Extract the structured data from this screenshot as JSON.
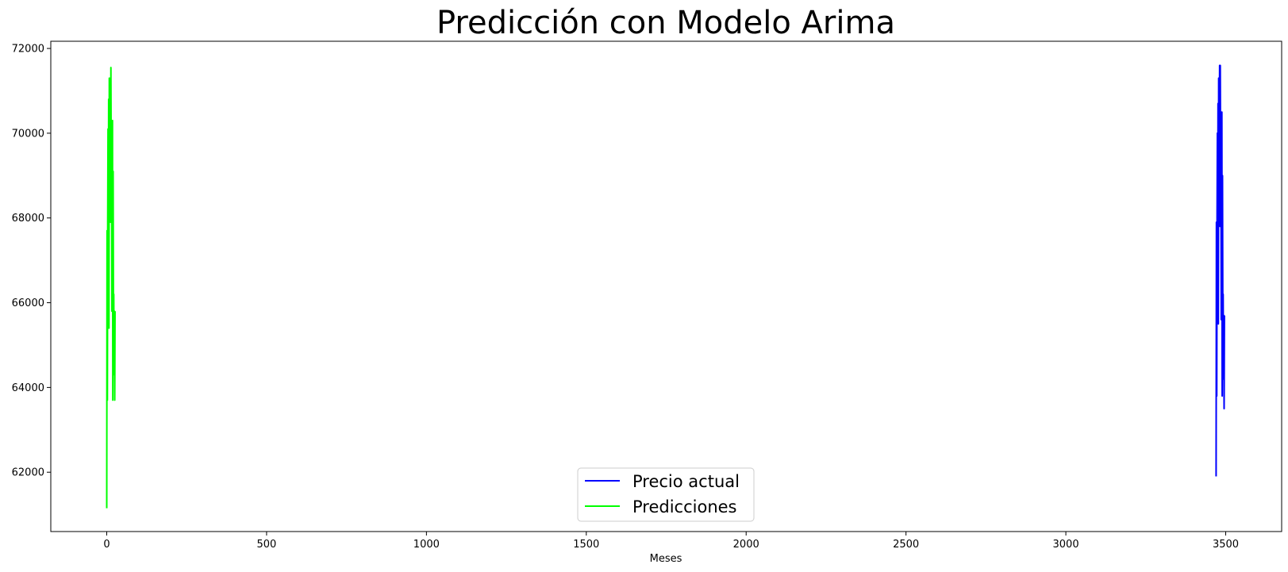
{
  "chart_data": {
    "type": "line",
    "title": "Predicción con Modelo Arima",
    "xlabel": "Meses",
    "ylabel": "",
    "xlim": [
      -175,
      3675
    ],
    "ylim": [
      60600,
      72170
    ],
    "xticks": [
      0,
      500,
      1000,
      1500,
      2000,
      2500,
      3000,
      3500
    ],
    "xtick_labels": [
      "0",
      "500",
      "1000",
      "1500",
      "2000",
      "2500",
      "3000",
      "3500"
    ],
    "yticks": [
      62000,
      64000,
      66000,
      68000,
      70000,
      72000
    ],
    "ytick_labels": [
      "62000",
      "64000",
      "66000",
      "68000",
      "70000",
      "72000"
    ],
    "grid": false,
    "legend_position": "lower center",
    "series": [
      {
        "name": "Precio actual",
        "color": "#0000ff",
        "x": [
          3470,
          3471,
          3472,
          3473,
          3474,
          3475,
          3476,
          3477,
          3478,
          3479,
          3480,
          3481,
          3482,
          3483,
          3484,
          3485,
          3486,
          3487,
          3488,
          3489,
          3490,
          3491,
          3492,
          3493,
          3494,
          3495,
          3496
        ],
        "y": [
          61900,
          67900,
          63800,
          68000,
          70000,
          67500,
          70700,
          65500,
          71300,
          69600,
          70200,
          71600,
          67800,
          71600,
          69300,
          70500,
          65600,
          68400,
          70500,
          63800,
          69000,
          65600,
          66200,
          64200,
          65700,
          63500,
          65700
        ]
      },
      {
        "name": "Predicciones",
        "color": "#00ff00",
        "x": [
          0,
          1,
          2,
          3,
          4,
          5,
          6,
          7,
          8,
          9,
          10,
          11,
          12,
          13,
          14,
          15,
          16,
          17,
          18,
          19,
          20,
          21,
          22,
          23,
          24,
          25,
          26
        ],
        "y": [
          61150,
          67700,
          63700,
          67900,
          70100,
          67300,
          70800,
          65400,
          71300,
          69500,
          70400,
          71300,
          67900,
          71550,
          69400,
          70300,
          65800,
          68500,
          70300,
          63700,
          69100,
          65700,
          66200,
          64300,
          65800,
          63700,
          65800
        ]
      }
    ]
  }
}
